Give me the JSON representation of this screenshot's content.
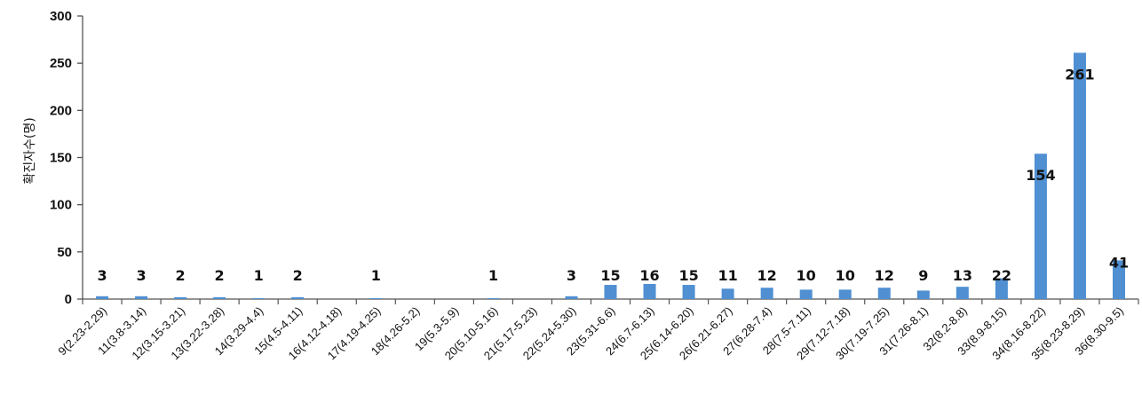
{
  "chart_data": {
    "type": "bar",
    "title": "",
    "xlabel": "",
    "ylabel": "확진자수(명)",
    "ylim": [
      0,
      300
    ],
    "yticks": [
      0,
      50,
      100,
      150,
      200,
      250,
      300
    ],
    "grid": false,
    "legend": "none",
    "bar_color": "#4f8fd2",
    "categories": [
      "9(2.23-2.29)",
      "11(3.8-3.14)",
      "12(3.15-3.21)",
      "13(3.22-3.28)",
      "14(3.29-4.4)",
      "15(4.5-4.11)",
      "16(4.12-4.18)",
      "17(4.19-4.25)",
      "18(4.26-5.2)",
      "19(5.3-5.9)",
      "20(5.10-5.16)",
      "21(5.17-5.23)",
      "22(5.24-5.30)",
      "23(5.31-6.6)",
      "24(6.7-6.13)",
      "25(6.14-6.20)",
      "26(6.21-6.27)",
      "27(6.28-7.4)",
      "28(7.5-7.11)",
      "29(7.12-7.18)",
      "30(7.19-7.25)",
      "31(7.26-8.1)",
      "32(8.2-8.8)",
      "33(8.9-8.15)",
      "34(8.16-8.22)",
      "35(8.23-8.29)",
      "36(8.30-9.5)"
    ],
    "values": [
      3,
      3,
      2,
      2,
      1,
      2,
      null,
      1,
      null,
      null,
      1,
      null,
      3,
      15,
      16,
      15,
      11,
      12,
      10,
      10,
      12,
      9,
      13,
      22,
      154,
      261,
      41
    ]
  }
}
